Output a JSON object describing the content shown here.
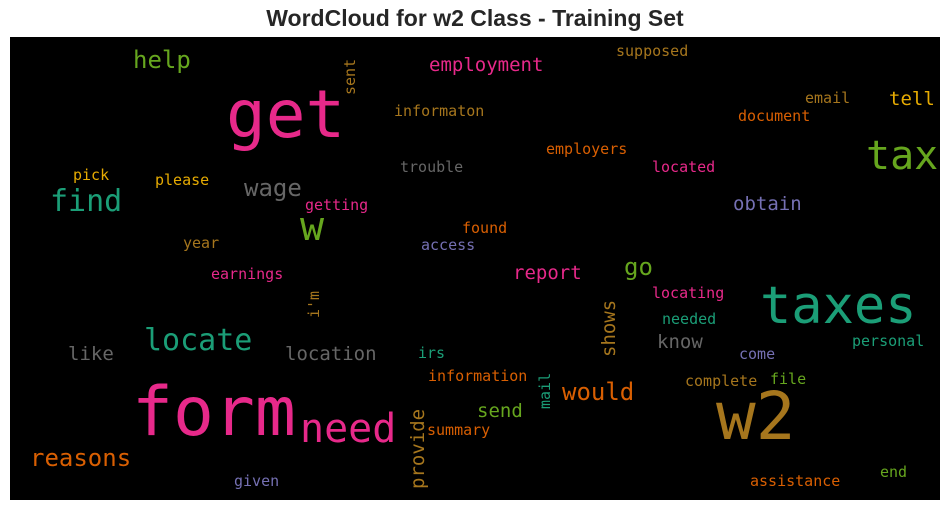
{
  "chart_data": {
    "type": "wordcloud",
    "title": "WordCloud for w2 Class - Training Set",
    "background": "#000000",
    "words": [
      {
        "text": "form",
        "color": "#e7298a"
      },
      {
        "text": "get",
        "color": "#e7298a"
      },
      {
        "text": "w2",
        "color": "#a6761d"
      },
      {
        "text": "taxes",
        "color": "#1b9e77"
      },
      {
        "text": "tax",
        "color": "#66a61e"
      },
      {
        "text": "need",
        "color": "#e7298a"
      },
      {
        "text": "w",
        "color": "#66a61e"
      },
      {
        "text": "locate",
        "color": "#1b9e77"
      },
      {
        "text": "find",
        "color": "#1b9e77"
      },
      {
        "text": "reasons",
        "color": "#d95f02"
      },
      {
        "text": "would",
        "color": "#d95f02"
      },
      {
        "text": "wage",
        "color": "#666666"
      },
      {
        "text": "help",
        "color": "#66a61e"
      },
      {
        "text": "employment",
        "color": "#e7298a"
      },
      {
        "text": "go",
        "color": "#66a61e"
      },
      {
        "text": "report",
        "color": "#e7298a"
      },
      {
        "text": "location",
        "color": "#666666"
      },
      {
        "text": "tell",
        "color": "#e6ab02"
      },
      {
        "text": "send",
        "color": "#66a61e"
      },
      {
        "text": "like",
        "color": "#666666"
      },
      {
        "text": "obtain",
        "color": "#7570b3"
      },
      {
        "text": "know",
        "color": "#666666"
      },
      {
        "text": "shows",
        "color": "#a6761d"
      },
      {
        "text": "provide",
        "color": "#a6761d"
      },
      {
        "text": "informaton",
        "color": "#a6761d"
      },
      {
        "text": "document",
        "color": "#d95f02"
      },
      {
        "text": "supposed",
        "color": "#a6761d"
      },
      {
        "text": "email",
        "color": "#a6761d"
      },
      {
        "text": "trouble",
        "color": "#666666"
      },
      {
        "text": "employers",
        "color": "#d95f02"
      },
      {
        "text": "located",
        "color": "#e7298a"
      },
      {
        "text": "getting",
        "color": "#e7298a"
      },
      {
        "text": "pick",
        "color": "#e6ab02"
      },
      {
        "text": "please",
        "color": "#e6ab02"
      },
      {
        "text": "year",
        "color": "#a6761d"
      },
      {
        "text": "found",
        "color": "#d95f02"
      },
      {
        "text": "access",
        "color": "#7570b3"
      },
      {
        "text": "earnings",
        "color": "#e7298a"
      },
      {
        "text": "i'm",
        "color": "#a6761d"
      },
      {
        "text": "sent",
        "color": "#a6761d"
      },
      {
        "text": "locating",
        "color": "#e7298a"
      },
      {
        "text": "needed",
        "color": "#1b9e77"
      },
      {
        "text": "personal",
        "color": "#1b9e77"
      },
      {
        "text": "irs",
        "color": "#1b9e77"
      },
      {
        "text": "come",
        "color": "#7570b3"
      },
      {
        "text": "information",
        "color": "#d95f02"
      },
      {
        "text": "complete",
        "color": "#a6761d"
      },
      {
        "text": "file",
        "color": "#66a61e"
      },
      {
        "text": "mail",
        "color": "#1b9e77"
      },
      {
        "text": "summary",
        "color": "#d95f02"
      },
      {
        "text": "end",
        "color": "#66a61e"
      },
      {
        "text": "assistance",
        "color": "#d95f02"
      },
      {
        "text": "given",
        "color": "#7570b3"
      }
    ]
  }
}
